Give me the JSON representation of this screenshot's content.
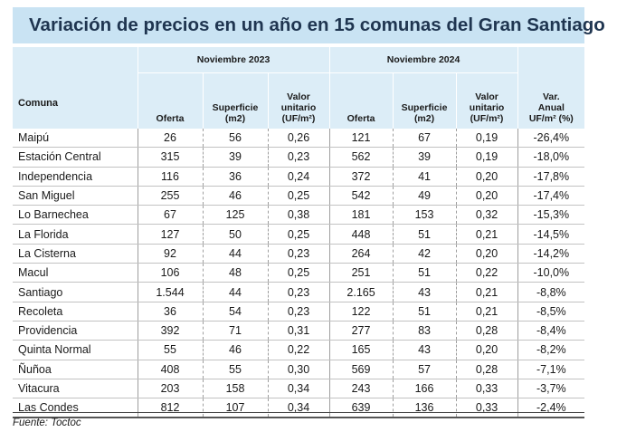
{
  "title": "Variación de precios en un año en 15 comunas del Gran Santiago",
  "headers": {
    "comuna": "Comuna",
    "group_2023": "Noviembre 2023",
    "group_2024": "Noviembre 2024",
    "oferta": "Oferta",
    "superficie_l1": "Superficie",
    "superficie_l2": "(m2)",
    "valor_l1": "Valor",
    "valor_l2": "unitario",
    "valor_l3": "(UF/m²)",
    "var_l1": "Var.",
    "var_l2": "Anual",
    "var_l3": "UF/m² (%)"
  },
  "rows": [
    {
      "comuna": "Maipú",
      "oferta_2023": "26",
      "sup_2023": "56",
      "valor_2023": "0,26",
      "oferta_2024": "121",
      "sup_2024": "67",
      "valor_2024": "0,19",
      "var": "-26,4%"
    },
    {
      "comuna": "Estación Central",
      "oferta_2023": "315",
      "sup_2023": "39",
      "valor_2023": "0,23",
      "oferta_2024": "562",
      "sup_2024": "39",
      "valor_2024": "0,19",
      "var": "-18,0%"
    },
    {
      "comuna": "Independencia",
      "oferta_2023": "116",
      "sup_2023": "36",
      "valor_2023": "0,24",
      "oferta_2024": "372",
      "sup_2024": "41",
      "valor_2024": "0,20",
      "var": "-17,8%"
    },
    {
      "comuna": "San Miguel",
      "oferta_2023": "255",
      "sup_2023": "46",
      "valor_2023": "0,25",
      "oferta_2024": "542",
      "sup_2024": "49",
      "valor_2024": "0,20",
      "var": "-17,4%"
    },
    {
      "comuna": "Lo Barnechea",
      "oferta_2023": "67",
      "sup_2023": "125",
      "valor_2023": "0,38",
      "oferta_2024": "181",
      "sup_2024": "153",
      "valor_2024": "0,32",
      "var": "-15,3%"
    },
    {
      "comuna": "La Florida",
      "oferta_2023": "127",
      "sup_2023": "50",
      "valor_2023": "0,25",
      "oferta_2024": "448",
      "sup_2024": "51",
      "valor_2024": "0,21",
      "var": "-14,5%"
    },
    {
      "comuna": "La Cisterna",
      "oferta_2023": "92",
      "sup_2023": "44",
      "valor_2023": "0,23",
      "oferta_2024": "264",
      "sup_2024": "42",
      "valor_2024": "0,20",
      "var": "-14,2%"
    },
    {
      "comuna": "Macul",
      "oferta_2023": "106",
      "sup_2023": "48",
      "valor_2023": "0,25",
      "oferta_2024": "251",
      "sup_2024": "51",
      "valor_2024": "0,22",
      "var": "-10,0%"
    },
    {
      "comuna": "Santiago",
      "oferta_2023": "1.544",
      "sup_2023": "44",
      "valor_2023": "0,23",
      "oferta_2024": "2.165",
      "sup_2024": "43",
      "valor_2024": "0,21",
      "var": "-8,8%"
    },
    {
      "comuna": "Recoleta",
      "oferta_2023": "36",
      "sup_2023": "54",
      "valor_2023": "0,23",
      "oferta_2024": "122",
      "sup_2024": "51",
      "valor_2024": "0,21",
      "var": "-8,5%"
    },
    {
      "comuna": "Providencia",
      "oferta_2023": "392",
      "sup_2023": "71",
      "valor_2023": "0,31",
      "oferta_2024": "277",
      "sup_2024": "83",
      "valor_2024": "0,28",
      "var": "-8,4%"
    },
    {
      "comuna": "Quinta Normal",
      "oferta_2023": "55",
      "sup_2023": "46",
      "valor_2023": "0,22",
      "oferta_2024": "165",
      "sup_2024": "43",
      "valor_2024": "0,20",
      "var": "-8,2%"
    },
    {
      "comuna": "Ñuñoa",
      "oferta_2023": "408",
      "sup_2023": "55",
      "valor_2023": "0,30",
      "oferta_2024": "569",
      "sup_2024": "57",
      "valor_2024": "0,28",
      "var": "-7,1%"
    },
    {
      "comuna": "Vitacura",
      "oferta_2023": "203",
      "sup_2023": "158",
      "valor_2023": "0,34",
      "oferta_2024": "243",
      "sup_2024": "166",
      "valor_2024": "0,33",
      "var": "-3,7%"
    },
    {
      "comuna": "Las Condes",
      "oferta_2023": "812",
      "sup_2023": "107",
      "valor_2023": "0,34",
      "oferta_2024": "639",
      "sup_2024": "136",
      "valor_2024": "0,33",
      "var": "-2,4%"
    }
  ],
  "source": "Fuente: Toctoc"
}
